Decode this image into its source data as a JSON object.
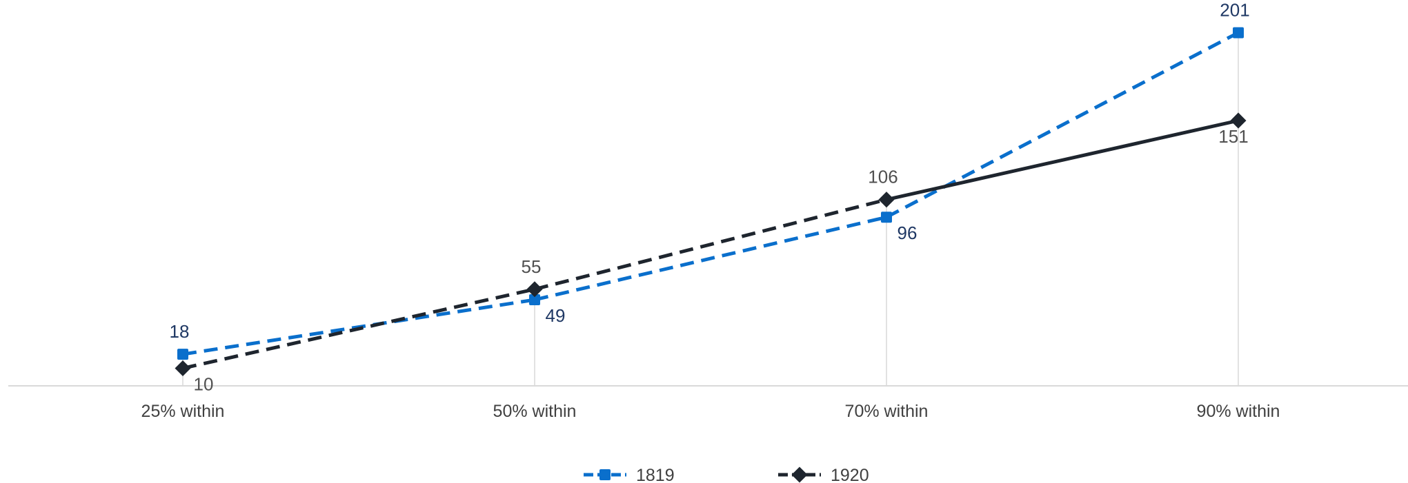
{
  "chart_data": {
    "type": "line",
    "categories": [
      "25% within",
      "50% within",
      "70% within",
      "90% within"
    ],
    "series": [
      {
        "name": "1819",
        "values": [
          18,
          49,
          96,
          201
        ],
        "color": "#0A6FCC",
        "label_color": "#1F3864",
        "line_style": "dashed",
        "marker": "square"
      },
      {
        "name": "1920",
        "values": [
          10,
          55,
          106,
          151
        ],
        "color": "#1E252E",
        "label_color": "#505050",
        "line_style": "dashed-then-solid",
        "marker": "diamond"
      }
    ],
    "ylim": [
      0,
      220
    ],
    "grid": false,
    "drop_lines": true,
    "legend_position": "bottom",
    "title": "",
    "xlabel": "",
    "ylabel": ""
  }
}
